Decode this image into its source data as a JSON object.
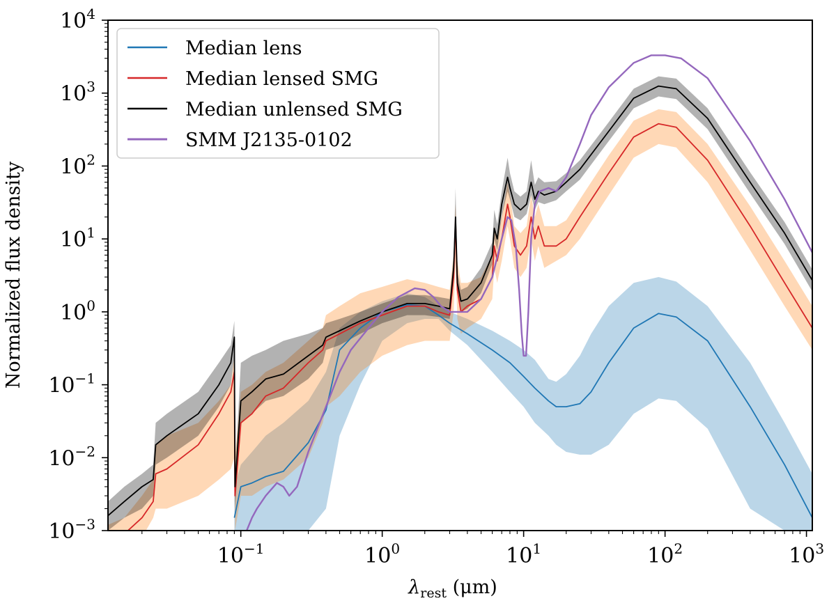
{
  "chart_data": {
    "type": "line",
    "xscale": "log",
    "yscale": "log",
    "xlim": [
      0.0115,
      1100
    ],
    "ylim": [
      0.001,
      10000
    ],
    "xlabel": {
      "symbol": "λ",
      "subscript": "rest",
      "units": " (μm)"
    },
    "ylabel": "Normalized flux density",
    "xticks": [
      {
        "base": "10",
        "exp": "−1",
        "value": 0.1
      },
      {
        "base": "10",
        "exp": "0",
        "value": 1
      },
      {
        "base": "10",
        "exp": "1",
        "value": 10
      },
      {
        "base": "10",
        "exp": "2",
        "value": 100
      },
      {
        "base": "10",
        "exp": "3",
        "value": 1000
      }
    ],
    "yticks": [
      {
        "base": "10",
        "exp": "−3",
        "value": 0.001
      },
      {
        "base": "10",
        "exp": "−2",
        "value": 0.01
      },
      {
        "base": "10",
        "exp": "−1",
        "value": 0.1
      },
      {
        "base": "10",
        "exp": "0",
        "value": 1
      },
      {
        "base": "10",
        "exp": "1",
        "value": 10
      },
      {
        "base": "10",
        "exp": "2",
        "value": 100
      },
      {
        "base": "10",
        "exp": "3",
        "value": 1000
      },
      {
        "base": "10",
        "exp": "4",
        "value": 10000
      }
    ],
    "legend_position": "top-left",
    "series": [
      {
        "name": "Median lens",
        "color": "#1f77b4",
        "x": [
          0.09,
          0.1,
          0.12,
          0.15,
          0.2,
          0.3,
          0.4,
          0.5,
          0.7,
          1.0,
          1.5,
          2.0,
          2.5,
          3.0,
          4.0,
          6.0,
          8.0,
          10.0,
          12.0,
          15.0,
          17.0,
          20.0,
          25.0,
          30.0,
          40.0,
          60.0,
          90.0,
          120.0,
          200.0,
          400.0,
          700.0,
          1100.0
        ],
        "y": [
          0.0015,
          0.004,
          0.0045,
          0.0055,
          0.0065,
          0.016,
          0.045,
          0.3,
          0.6,
          1.0,
          1.25,
          1.2,
          0.9,
          0.7,
          0.5,
          0.3,
          0.2,
          0.13,
          0.09,
          0.06,
          0.05,
          0.05,
          0.055,
          0.08,
          0.2,
          0.6,
          0.95,
          0.85,
          0.4,
          0.05,
          0.008,
          0.0015
        ],
        "band": {
          "color": "#1f77b4",
          "opacity": 0.3,
          "lower": [
            0.001,
            0.001,
            0.001,
            0.001,
            0.001,
            0.001,
            0.002,
            0.02,
            0.1,
            0.4,
            0.7,
            0.8,
            0.8,
            0.55,
            0.35,
            0.15,
            0.08,
            0.05,
            0.03,
            0.02,
            0.015,
            0.012,
            0.011,
            0.011,
            0.015,
            0.04,
            0.065,
            0.06,
            0.025,
            0.002,
            0.001,
            0.001
          ],
          "upper": [
            0.004,
            0.008,
            0.012,
            0.02,
            0.03,
            0.06,
            0.15,
            0.6,
            1.0,
            1.4,
            1.8,
            1.6,
            1.2,
            1.0,
            0.8,
            0.55,
            0.4,
            0.3,
            0.22,
            0.12,
            0.11,
            0.14,
            0.25,
            0.5,
            1.2,
            2.5,
            3.0,
            2.6,
            1.2,
            0.2,
            0.03,
            0.006
          ]
        }
      },
      {
        "name": "Median lensed SMG",
        "color": "#d62728",
        "x": [
          0.0115,
          0.015,
          0.02,
          0.024,
          0.025,
          0.03,
          0.05,
          0.07,
          0.085,
          0.09,
          0.091,
          0.1,
          0.12,
          0.15,
          0.2,
          0.3,
          0.38,
          0.4,
          0.5,
          0.7,
          1.0,
          1.5,
          2.0,
          2.5,
          3.0,
          3.2,
          3.3,
          3.4,
          3.6,
          4.0,
          5.0,
          6.0,
          6.2,
          6.5,
          7.0,
          7.7,
          8.0,
          8.6,
          9.5,
          10.5,
          11.3,
          12.0,
          12.7,
          14.0,
          17.0,
          20.0,
          25.0,
          40.0,
          60.0,
          90.0,
          120.0,
          200.0,
          400.0,
          700.0,
          1100.0
        ],
        "y": [
          0.0007,
          0.0009,
          0.0015,
          0.0025,
          0.006,
          0.007,
          0.015,
          0.04,
          0.08,
          0.15,
          0.003,
          0.03,
          0.04,
          0.07,
          0.09,
          0.2,
          0.3,
          0.4,
          0.5,
          0.7,
          0.9,
          1.2,
          1.2,
          1.0,
          0.9,
          3.0,
          18.0,
          2.0,
          1.0,
          1.2,
          1.5,
          3.0,
          8.0,
          5.0,
          10.0,
          30.0,
          20.0,
          8.0,
          6.0,
          8.0,
          20.0,
          10.0,
          15.0,
          8.0,
          8.0,
          10.0,
          20.0,
          80.0,
          250.0,
          380.0,
          340.0,
          120.0,
          15.0,
          2.5,
          0.6
        ],
        "band": {
          "color": "#ff7f0e",
          "opacity": 0.3,
          "lower": [
            0.0005,
            0.0005,
            0.0008,
            0.0015,
            0.002,
            0.002,
            0.003,
            0.005,
            0.007,
            0.01,
            0.001,
            0.003,
            0.003,
            0.004,
            0.005,
            0.01,
            0.03,
            0.05,
            0.07,
            0.15,
            0.25,
            0.35,
            0.4,
            0.4,
            0.4,
            1.0,
            5.0,
            0.8,
            0.5,
            0.6,
            0.8,
            1.5,
            4.0,
            2.5,
            5.0,
            15.0,
            10.0,
            4.0,
            3.0,
            4.0,
            10.0,
            5.0,
            8.0,
            4.0,
            5.0,
            6.0,
            10.0,
            40.0,
            130.0,
            200.0,
            180.0,
            60.0,
            7.0,
            1.2,
            0.3
          ],
          "upper": [
            0.0012,
            0.0015,
            0.003,
            0.005,
            0.015,
            0.02,
            0.03,
            0.06,
            0.1,
            0.25,
            0.01,
            0.08,
            0.1,
            0.15,
            0.2,
            0.4,
            0.6,
            0.9,
            1.2,
            1.8,
            2.2,
            2.8,
            2.5,
            2.2,
            2.0,
            6.0,
            30.0,
            5.0,
            2.5,
            2.5,
            3.0,
            6.0,
            15.0,
            10.0,
            20.0,
            60.0,
            40.0,
            15.0,
            12.0,
            15.0,
            40.0,
            20.0,
            30.0,
            15.0,
            15.0,
            18.0,
            35.0,
            140.0,
            420.0,
            600.0,
            550.0,
            200.0,
            28.0,
            5.0,
            1.2
          ]
        }
      },
      {
        "name": "Median unlensed SMG",
        "color": "#000000",
        "x": [
          0.0115,
          0.015,
          0.02,
          0.024,
          0.025,
          0.03,
          0.05,
          0.07,
          0.085,
          0.09,
          0.091,
          0.1,
          0.12,
          0.15,
          0.2,
          0.3,
          0.38,
          0.4,
          0.5,
          0.7,
          1.0,
          1.5,
          2.0,
          2.5,
          3.0,
          3.2,
          3.3,
          3.4,
          3.6,
          4.0,
          5.0,
          6.0,
          6.2,
          6.5,
          7.0,
          7.7,
          8.0,
          8.6,
          9.5,
          10.5,
          11.3,
          12.0,
          12.7,
          14.0,
          17.0,
          20.0,
          25.0,
          40.0,
          60.0,
          90.0,
          120.0,
          200.0,
          400.0,
          700.0,
          1100.0
        ],
        "y": [
          0.0016,
          0.0025,
          0.004,
          0.005,
          0.015,
          0.02,
          0.04,
          0.1,
          0.2,
          0.45,
          0.004,
          0.06,
          0.08,
          0.12,
          0.14,
          0.25,
          0.35,
          0.45,
          0.55,
          0.75,
          1.0,
          1.3,
          1.3,
          1.2,
          1.1,
          4.0,
          20.0,
          2.5,
          1.4,
          1.5,
          2.5,
          6.0,
          14.0,
          10.0,
          30.0,
          70.0,
          50.0,
          30.0,
          25.0,
          30.0,
          60.0,
          35.0,
          45.0,
          40.0,
          45.0,
          60.0,
          90.0,
          300.0,
          850.0,
          1250.0,
          1150.0,
          450.0,
          60.0,
          12.0,
          2.7
        ],
        "band": {
          "color": "#000000",
          "opacity": 0.3,
          "lower": [
            0.001,
            0.0015,
            0.002,
            0.003,
            0.008,
            0.01,
            0.02,
            0.05,
            0.1,
            0.25,
            0.002,
            0.03,
            0.04,
            0.06,
            0.07,
            0.12,
            0.2,
            0.3,
            0.35,
            0.5,
            0.7,
            0.9,
            0.9,
            0.85,
            0.8,
            2.5,
            12.0,
            1.8,
            1.0,
            1.1,
            1.8,
            4.5,
            10.0,
            7.0,
            20.0,
            45.0,
            35.0,
            20.0,
            18.0,
            22.0,
            40.0,
            25.0,
            32.0,
            30.0,
            34.0,
            45.0,
            65.0,
            220.0,
            620.0,
            900.0,
            830.0,
            320.0,
            42.0,
            8.5,
            1.9
          ],
          "upper": [
            0.0025,
            0.004,
            0.006,
            0.008,
            0.03,
            0.04,
            0.08,
            0.2,
            0.35,
            0.75,
            0.006,
            0.2,
            0.25,
            0.3,
            0.4,
            0.5,
            0.6,
            0.7,
            0.8,
            1.0,
            1.3,
            1.7,
            1.7,
            1.6,
            1.5,
            6.0,
            50.0,
            3.5,
            2.0,
            2.2,
            4.0,
            9.0,
            25.0,
            16.0,
            45.0,
            130.0,
            80.0,
            45.0,
            38.0,
            45.0,
            120.0,
            55.0,
            70.0,
            60.0,
            62.0,
            80.0,
            120.0,
            400.0,
            1150.0,
            1700.0,
            1580.0,
            620.0,
            82.0,
            17.0,
            3.8
          ]
        }
      },
      {
        "name": "SMM J2135-0102",
        "color": "#9467bd",
        "x": [
          0.1,
          0.105,
          0.11,
          0.12,
          0.13,
          0.15,
          0.18,
          0.2,
          0.22,
          0.25,
          0.3,
          0.4,
          0.5,
          0.6,
          0.8,
          1.0,
          1.3,
          1.7,
          2.0,
          2.3,
          2.6,
          3.0,
          4.0,
          5.0,
          6.0,
          7.0,
          7.7,
          8.2,
          8.8,
          9.3,
          9.7,
          10.0,
          10.4,
          10.8,
          11.3,
          12.0,
          13.0,
          15.0,
          17.0,
          20.0,
          25.0,
          30.0,
          40.0,
          60.0,
          80.0,
          100.0,
          130.0,
          200.0,
          400.0,
          700.0,
          1100.0
        ],
        "y": [
          0.001,
          0.0008,
          0.001,
          0.0015,
          0.002,
          0.003,
          0.0045,
          0.004,
          0.003,
          0.004,
          0.012,
          0.05,
          0.15,
          0.3,
          0.6,
          1.0,
          1.6,
          2.1,
          2.0,
          1.6,
          1.2,
          1.0,
          1.0,
          1.5,
          3.0,
          10.0,
          20.0,
          18.0,
          8.0,
          2.0,
          0.5,
          0.25,
          0.25,
          1.0,
          10.0,
          30.0,
          45.0,
          50.0,
          45.0,
          70.0,
          200.0,
          500.0,
          1200.0,
          2600.0,
          3300.0,
          3300.0,
          3000.0,
          1600.0,
          220.0,
          35.0,
          6.5
        ]
      }
    ]
  }
}
